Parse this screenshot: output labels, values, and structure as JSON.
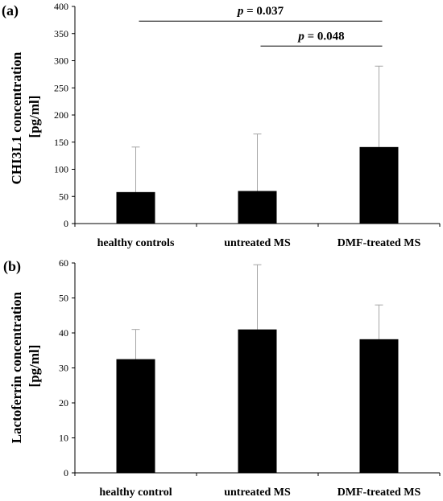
{
  "colors": {
    "bar": "#000000",
    "error": "#a6a6a6",
    "axis": "#000000"
  },
  "chart_data": [
    {
      "type": "bar",
      "panel": "(a)",
      "ylabel_lines": [
        "CHI3L1 concentration",
        "[pg/ml]"
      ],
      "categories": [
        "healthy controls",
        "untreated MS",
        "DMF-treated MS"
      ],
      "values": [
        58,
        60,
        141
      ],
      "error_upper": [
        141,
        165,
        290
      ],
      "ylim": [
        0,
        400
      ],
      "yticks": [
        0,
        50,
        100,
        150,
        200,
        250,
        300,
        350,
        400
      ],
      "grid": false,
      "annotations": [
        {
          "p_symbol": "p",
          "p_value": " = 0.037",
          "from": 0,
          "to": 2,
          "y": 373
        },
        {
          "p_symbol": "p",
          "p_value": " = 0.048",
          "from": 1,
          "to": 2,
          "y": 327
        }
      ]
    },
    {
      "type": "bar",
      "panel": "(b)",
      "ylabel_lines": [
        "Lactoferrin concentration",
        "[pg/ml]"
      ],
      "categories": [
        "healthy control",
        "untreated MS",
        "DMF-treated MS"
      ],
      "values": [
        32.5,
        41,
        38.2
      ],
      "error_upper": [
        41,
        59.5,
        48
      ],
      "ylim": [
        0,
        60
      ],
      "yticks": [
        0,
        10,
        20,
        30,
        40,
        50,
        60
      ],
      "grid": false,
      "annotations": []
    }
  ]
}
